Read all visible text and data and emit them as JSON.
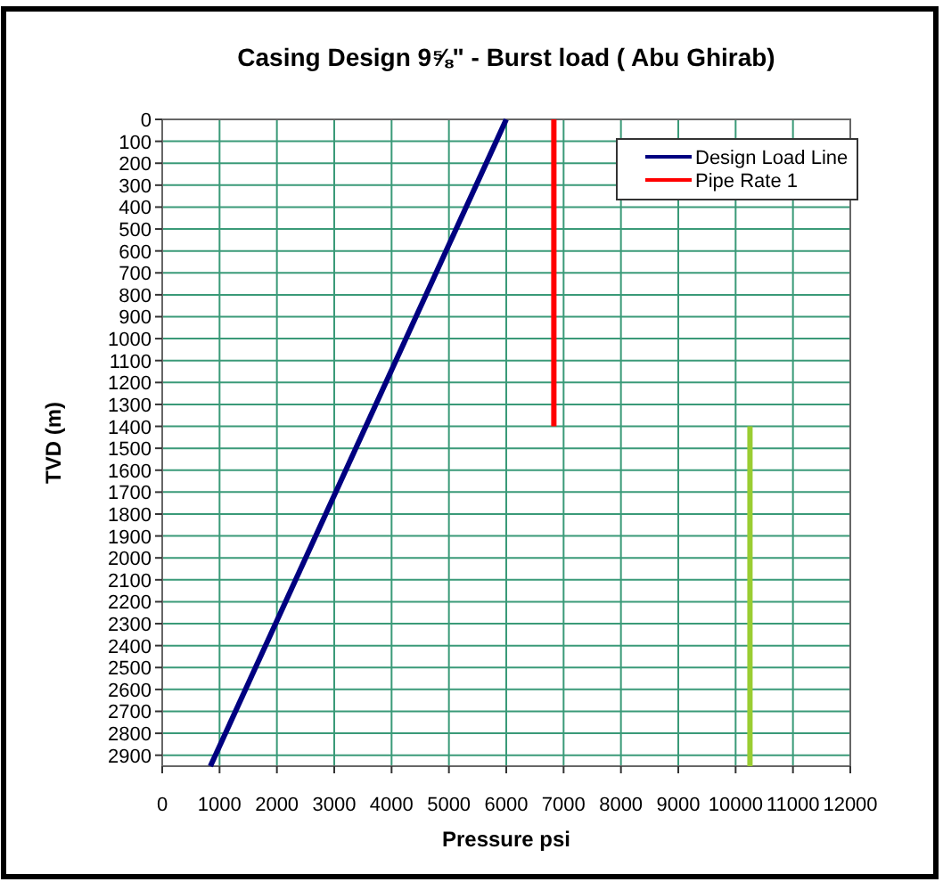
{
  "chart_data": {
    "type": "line",
    "title": "Casing Design 9⅝\" - Burst  load ( Abu Ghirab)",
    "xlabel": "Pressure psi",
    "ylabel": "TVD (m)",
    "series": [
      {
        "name": "Design Load Line",
        "color": "#000080",
        "x": [
          6000,
          840
        ],
        "values": [
          0,
          2950
        ]
      },
      {
        "name": "Pipe Rate 1",
        "color": "#ff0000",
        "x": [
          6830,
          6830
        ],
        "values": [
          0,
          1400
        ]
      },
      {
        "color": "#9acd32",
        "x": [
          10250,
          10250
        ],
        "values": [
          1400,
          2950
        ]
      }
    ],
    "xlim": [
      0,
      12000
    ],
    "xticks": [
      0,
      1000,
      2000,
      3000,
      4000,
      5000,
      6000,
      7000,
      8000,
      9000,
      10000,
      11000,
      12000
    ],
    "ylim": [
      2950,
      0
    ],
    "yticks": [
      0,
      100,
      200,
      300,
      400,
      500,
      600,
      700,
      800,
      900,
      1000,
      1100,
      1200,
      1300,
      1400,
      1500,
      1600,
      1700,
      1800,
      1900,
      2000,
      2100,
      2200,
      2300,
      2400,
      2500,
      2600,
      2700,
      2800,
      2900
    ],
    "grid": true,
    "legend": "top right",
    "line_style": "solid",
    "marker": "none"
  }
}
